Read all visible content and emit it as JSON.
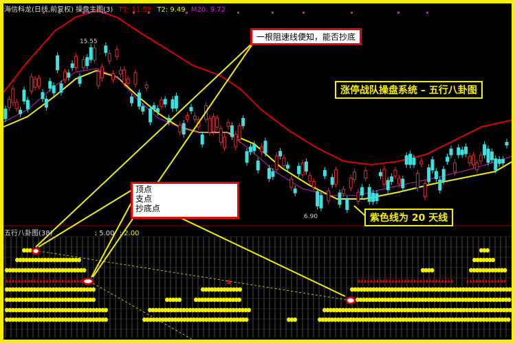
{
  "header": {
    "title": "海信科龙(日线,前复权) 操盘主图(3)",
    "t1": "T1: 11.53",
    "t2": "T2: 9.49",
    "m20": "M20: 9.72",
    "colors": {
      "t1": "#e00000",
      "t2": "#f0f000",
      "m20": "#d020d0"
    }
  },
  "main_chart": {
    "high_label": "15.55",
    "low_label": "6.90"
  },
  "sub_panel": {
    "title": "五行八卦图(38)",
    "v1": ": 5.00",
    "v2": ": 2.00"
  },
  "annotations": {
    "resist_line": "一根阻速线便知，能否抄底",
    "system_title": "涨停战队操盘系统 – 五行八卦图",
    "points": [
      "顶点",
      "支点",
      "抄底点"
    ],
    "purple_line": "紫色线为 20 天线"
  }
}
